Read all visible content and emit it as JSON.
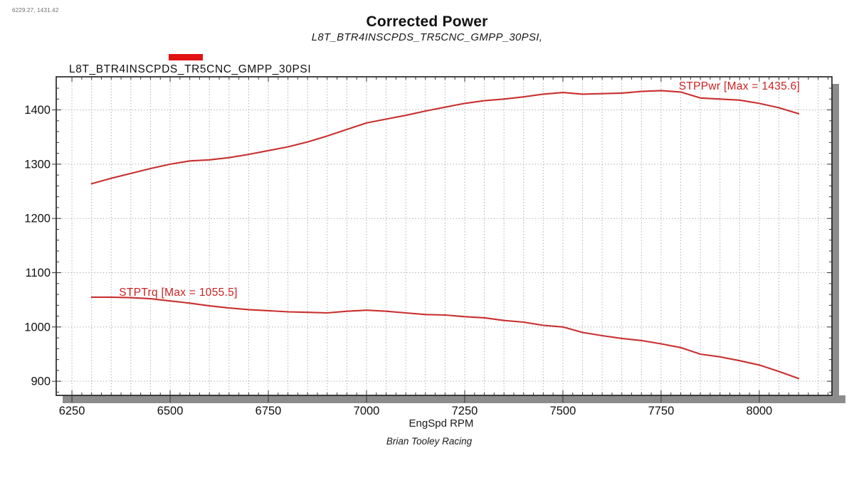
{
  "window": {
    "cursor_readout": "6229.27, 1431.42"
  },
  "header": {
    "title": "Corrected Power",
    "subtitle": "L8T_BTR4INSCPDS_TR5CNC_GMPP_30PSI,"
  },
  "legend": {
    "label": "L8T_BTR4INSCPDS_TR5CNC_GMPP_30PSI",
    "swatch_color": "#e01212"
  },
  "footer": {
    "brand": "Brian Tooley Racing"
  },
  "chart_data": {
    "type": "line",
    "title": "Corrected Power",
    "subtitle": "L8T_BTR4INSCPDS_TR5CNC_GMPP_30PSI,",
    "xlabel": "EngSpd RPM",
    "ylabel": "",
    "xlim": [
      6210,
      8185
    ],
    "ylim": [
      874,
      1461
    ],
    "x_ticks": [
      6250,
      6500,
      6750,
      7000,
      7250,
      7500,
      7750,
      8000
    ],
    "y_ticks": [
      900,
      1000,
      1100,
      1200,
      1300,
      1400
    ],
    "x_minor_step": 50,
    "grid": "dotted",
    "grid_color": "#b0b0b0",
    "line_color": "#c92f2f",
    "label_color": "#cc2222",
    "x": [
      6300,
      6350,
      6400,
      6450,
      6500,
      6550,
      6600,
      6650,
      6700,
      6750,
      6800,
      6850,
      6900,
      6950,
      7000,
      7050,
      7100,
      7150,
      7200,
      7250,
      7300,
      7350,
      7400,
      7450,
      7500,
      7550,
      7600,
      7650,
      7700,
      7750,
      7800,
      7850,
      7900,
      7950,
      8000,
      8050,
      8100
    ],
    "series": [
      {
        "name": "STPPwr",
        "label": "STPPwr [Max = 1435.6]",
        "max": 1435.6,
        "label_at": [
          7795,
          1456
        ],
        "values": [
          1264,
          1274,
          1283,
          1292,
          1300,
          1306,
          1308,
          1312,
          1318,
          1325,
          1332,
          1341,
          1352,
          1364,
          1376,
          1383,
          1390,
          1398,
          1405,
          1412,
          1417,
          1420,
          1424,
          1429,
          1432,
          1429,
          1430,
          1431,
          1434,
          1435.6,
          1433,
          1422,
          1420,
          1418,
          1412,
          1404,
          1393
        ]
      },
      {
        "name": "STPTrq",
        "label": "STPTrq [Max = 1055.5]",
        "max": 1055.5,
        "label_at": [
          6370,
          1076
        ],
        "values": [
          1055,
          1055,
          1054,
          1052,
          1048,
          1044,
          1039,
          1035,
          1032,
          1030,
          1028,
          1027,
          1026,
          1029,
          1031,
          1029,
          1026,
          1023,
          1022,
          1019,
          1017,
          1012,
          1009,
          1003,
          1000,
          990,
          984,
          979,
          975,
          969,
          962,
          950,
          945,
          938,
          930,
          918,
          905
        ]
      }
    ]
  }
}
